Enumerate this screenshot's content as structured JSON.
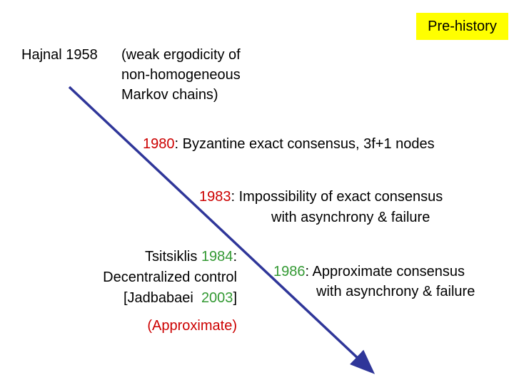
{
  "badge": "Pre-history",
  "hajnal": {
    "name": "Hajnal 1958",
    "lines": [
      "(weak ergodicity of",
      "non-homogeneous",
      "Markov chains)"
    ]
  },
  "event_1980": {
    "year": "1980",
    "text": ": Byzantine exact consensus, 3f+1 nodes"
  },
  "event_1983": {
    "year": "1983",
    "text": ": Impossibility of exact consensus",
    "line2": "with asynchrony & failure"
  },
  "tsitsiklis": {
    "name": "Tsitsiklis ",
    "year": "1984",
    "colon": ":",
    "line2": "Decentralized control",
    "line3_open": "[Jadbabaei  ",
    "line3_year": "2003",
    "line3_close": "]",
    "line4": "(Approximate)"
  },
  "event_1986": {
    "year": "1986",
    "text": ": Approximate consensus",
    "line2": "with asynchrony & failure"
  }
}
